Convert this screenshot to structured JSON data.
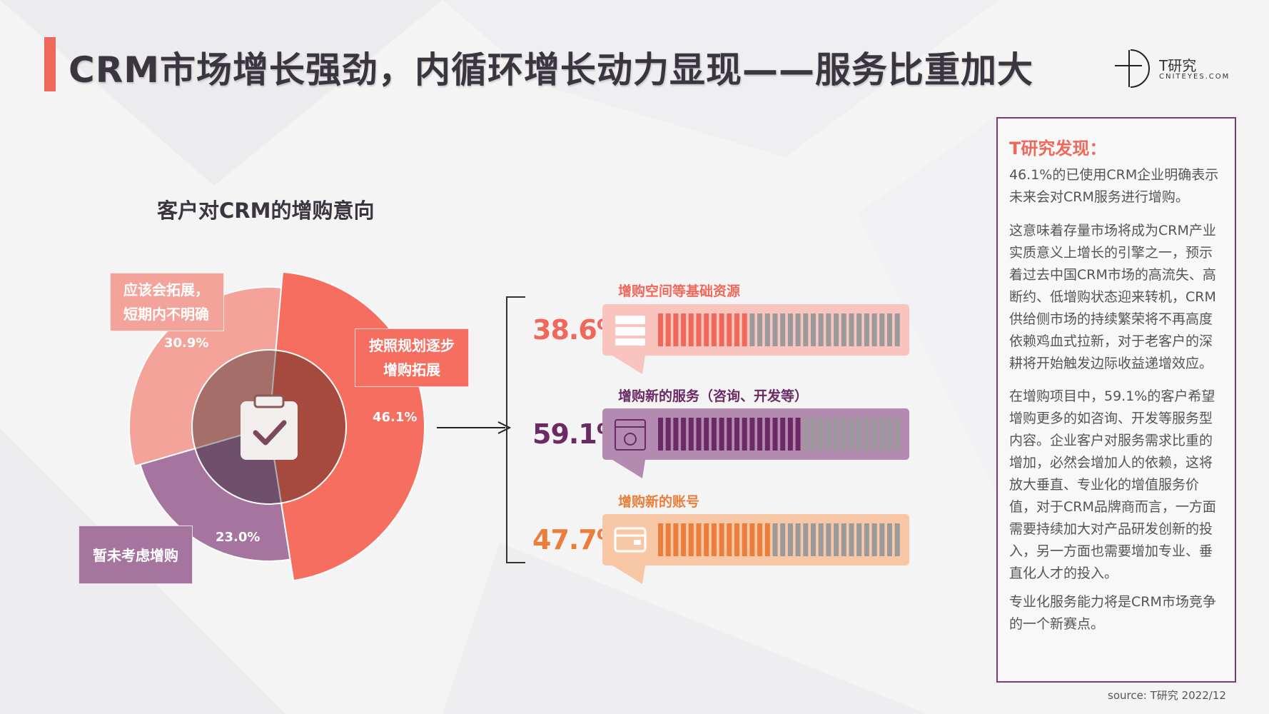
{
  "page": {
    "title": "CRM市场增长强劲，内循环增长动力显现——服务比重加大",
    "logo_main": "T研究",
    "logo_sub": "CNITEYES.COM",
    "source": "source:   T研究 2022/12"
  },
  "colors": {
    "accent": "#f0685a",
    "pink": "#f4a39a",
    "purple": "#a6759f",
    "dark_purple": "#6b2a64",
    "orange": "#ea7e3a",
    "sidebar_border": "#7d3a78"
  },
  "chart_data": [
    {
      "type": "pie",
      "title": "客户对CRM的增购意向",
      "categories": [
        "按照规划逐步增购拓展",
        "暂未考虑增购",
        "应该会拓展，短期内不明确"
      ],
      "values": [
        46.1,
        23.0,
        30.9
      ],
      "value_labels": [
        "46.1%",
        "23.0%",
        "30.9%"
      ],
      "slice_labels": [
        [
          "按照规划逐步",
          "增购拓展"
        ],
        [
          "暂未考虑增购"
        ],
        [
          "应该会拓展，",
          "短期内不明确"
        ]
      ],
      "colors": [
        "#f56e5f",
        "#a6759f",
        "#f4a39a"
      ],
      "center_icon": "clipboard-check-icon"
    },
    {
      "type": "bar",
      "categories": [
        "增购空间等基础资源",
        "增购新的服务（咨询、开发等）",
        "增购新的账号"
      ],
      "values": [
        38.6,
        59.1,
        47.7
      ],
      "value_labels": [
        "38.6%",
        "59.1%",
        "47.7%"
      ],
      "xlim": [
        0,
        100
      ],
      "icons": [
        "server-icon",
        "gear-window-icon",
        "card-icon"
      ],
      "fill_colors": [
        "#f0685a",
        "#6b2a64",
        "#ea7e3a"
      ],
      "panel_colors": [
        "#f8c4bd",
        "#b48bb0",
        "#f8c8a6"
      ],
      "caption_colors": [
        "#f0685a",
        "#6b2a64",
        "#ea7e3a"
      ]
    }
  ],
  "sidebar": {
    "heading": "T研究发现：",
    "paragraphs": [
      "46.1%的已使用CRM企业明确表示未来会对CRM服务进行增购。",
      "这意味着存量市场将成为CRM产业实质意义上增长的引擎之一，预示着过去中国CRM市场的高流失、高断约、低增购状态迎来转机，CRM供给侧市场的持续繁荣将不再高度依赖鸡血式拉新，对于老客户的深耕将开始触发边际收益递增效应。",
      "在增购项目中，59.1%的客户希望增购更多的如咨询、开发等服务型内容。企业客户对服务需求比重的增加，必然会增加人的依赖，这将放大垂直、专业化的增值服务价值，对于CRM品牌商而言，一方面需要持续加大对产品研发创新的投入，另一方面也需要增加专业、垂直化人才的投入。",
      "专业化服务能力将是CRM市场竞争的一个新赛点。"
    ]
  }
}
